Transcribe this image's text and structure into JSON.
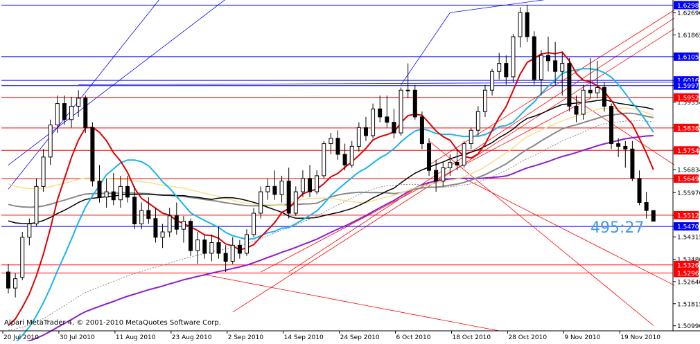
{
  "copyright": "Alpari MetaTrader 4, © 2001-2010 MetaQuotes Software Corp.",
  "countdown": "495:27",
  "colors": {
    "background": "#ffffff",
    "candle": "#000000",
    "hline_blue": "#0000ff",
    "hline_red": "#ff0000",
    "price_tag_blue": "#0000ff",
    "price_tag_red": "#ff0000",
    "countdown": "#3c9be8",
    "ma_red": "#dd0000",
    "ma_cyan": "#18b4ec",
    "ma_black": "#000000",
    "ma_yellow": "#f5e08c",
    "ma_gray": "#888888",
    "ma_purple": "#8a1ed0",
    "ma_dotted": "#888888"
  },
  "chart_data": {
    "type": "candlestick",
    "symbol_timeframe": "Daily",
    "y_axis_ticks": [
      "1.62690",
      "1.61865",
      "1.61054",
      "1.60165",
      "1.59970",
      "1.59354",
      "1.58390",
      "1.57600",
      "1.56834",
      "1.56494",
      "1.55970",
      "1.55126",
      "1.54706",
      "1.54315",
      "1.53480",
      "1.52640",
      "1.51815",
      "1.50990"
    ],
    "x_axis_labels": [
      "20 Jul 2010",
      "30 Jul 2010",
      "11 Aug 2010",
      "23 Aug 2010",
      "2 Sep 2010",
      "14 Sep 2010",
      "24 Sep 2010",
      "6 Oct 2010",
      "18 Oct 2010",
      "28 Oct 2010",
      "9 Nov 2010",
      "19 Nov 2010"
    ],
    "x_axis_label_bars": [
      0,
      8,
      16,
      24,
      32,
      40,
      48,
      56,
      64,
      72,
      80,
      88
    ],
    "ylim": [
      1.508,
      1.6312
    ],
    "bars": 95,
    "price_levels": [
      {
        "value": 1.6298,
        "label": "1.62980",
        "color": "blue"
      },
      {
        "value": 1.61054,
        "label": "1.61054",
        "color": "blue"
      },
      {
        "value": 1.60165,
        "label": "1.60165",
        "color": "blue"
      },
      {
        "value": 1.5997,
        "label": "1.59970",
        "color": "blue"
      },
      {
        "value": 1.59528,
        "label": "1.59528",
        "color": "red"
      },
      {
        "value": 1.58388,
        "label": "1.58388",
        "color": "red"
      },
      {
        "value": 1.57548,
        "label": "1.57548",
        "color": "red"
      },
      {
        "value": 1.56494,
        "label": "1.56494",
        "color": "red"
      },
      {
        "value": 1.55126,
        "label": "1.55126",
        "color": "red"
      },
      {
        "value": 1.54706,
        "label": "1.54706",
        "color": "blue"
      },
      {
        "value": 1.53264,
        "label": "1.53264",
        "color": "red"
      },
      {
        "value": 1.52964,
        "label": "1.52964",
        "color": "red"
      }
    ],
    "candles": [
      [
        1.53,
        1.533,
        1.522,
        1.524
      ],
      [
        1.524,
        1.5295,
        1.5205,
        1.5275
      ],
      [
        1.528,
        1.545,
        1.527,
        1.543
      ],
      [
        1.543,
        1.55,
        1.54,
        1.548
      ],
      [
        1.548,
        1.565,
        1.547,
        1.562
      ],
      [
        1.562,
        1.576,
        1.56,
        1.573
      ],
      [
        1.573,
        1.587,
        1.57,
        1.585
      ],
      [
        1.585,
        1.596,
        1.582,
        1.593
      ],
      [
        1.593,
        1.596,
        1.585,
        1.587
      ],
      [
        1.587,
        1.5955,
        1.584,
        1.592
      ],
      [
        1.592,
        1.598,
        1.588,
        1.595
      ],
      [
        1.595,
        1.596,
        1.582,
        1.584
      ],
      [
        1.584,
        1.586,
        1.562,
        1.564
      ],
      [
        1.564,
        1.57,
        1.556,
        1.558
      ],
      [
        1.558,
        1.565,
        1.554,
        1.56
      ],
      [
        1.56,
        1.567,
        1.555,
        1.557
      ],
      [
        1.557,
        1.566,
        1.554,
        1.562
      ],
      [
        1.562,
        1.566,
        1.556,
        1.558
      ],
      [
        1.558,
        1.562,
        1.546,
        1.548
      ],
      [
        1.548,
        1.556,
        1.546,
        1.553
      ],
      [
        1.553,
        1.558,
        1.548,
        1.55
      ],
      [
        1.55,
        1.554,
        1.541,
        1.543
      ],
      [
        1.543,
        1.548,
        1.539,
        1.545
      ],
      [
        1.545,
        1.554,
        1.543,
        1.551
      ],
      [
        1.551,
        1.556,
        1.544,
        1.546
      ],
      [
        1.546,
        1.551,
        1.541,
        1.549
      ],
      [
        1.549,
        1.55,
        1.536,
        1.538
      ],
      [
        1.538,
        1.545,
        1.533,
        1.542
      ],
      [
        1.542,
        1.544,
        1.535,
        1.537
      ],
      [
        1.537,
        1.544,
        1.534,
        1.541
      ],
      [
        1.541,
        1.547,
        1.535,
        1.537
      ],
      [
        1.537,
        1.54,
        1.53,
        1.534
      ],
      [
        1.534,
        1.543,
        1.533,
        1.54
      ],
      [
        1.54,
        1.542,
        1.535,
        1.537
      ],
      [
        1.537,
        1.546,
        1.536,
        1.544
      ],
      [
        1.544,
        1.554,
        1.543,
        1.552
      ],
      [
        1.552,
        1.562,
        1.55,
        1.56
      ],
      [
        1.56,
        1.565,
        1.557,
        1.562
      ],
      [
        1.562,
        1.568,
        1.557,
        1.559
      ],
      [
        1.559,
        1.566,
        1.556,
        1.564
      ],
      [
        1.564,
        1.569,
        1.55,
        1.552
      ],
      [
        1.552,
        1.562,
        1.551,
        1.56
      ],
      [
        1.56,
        1.568,
        1.558,
        1.565
      ],
      [
        1.565,
        1.57,
        1.558,
        1.56
      ],
      [
        1.56,
        1.568,
        1.559,
        1.566
      ],
      [
        1.566,
        1.579,
        1.565,
        1.578
      ],
      [
        1.578,
        1.582,
        1.574,
        1.58
      ],
      [
        1.58,
        1.583,
        1.572,
        1.574
      ],
      [
        1.574,
        1.578,
        1.568,
        1.57
      ],
      [
        1.57,
        1.579,
        1.569,
        1.577
      ],
      [
        1.577,
        1.586,
        1.575,
        1.584
      ],
      [
        1.584,
        1.588,
        1.579,
        1.581
      ],
      [
        1.581,
        1.593,
        1.58,
        1.591
      ],
      [
        1.591,
        1.596,
        1.586,
        1.588
      ],
      [
        1.588,
        1.596,
        1.584,
        1.586
      ],
      [
        1.586,
        1.591,
        1.58,
        1.582
      ],
      [
        1.582,
        1.599,
        1.581,
        1.598
      ],
      [
        1.598,
        1.608,
        1.595,
        1.598
      ],
      [
        1.598,
        1.6,
        1.587,
        1.588
      ],
      [
        1.588,
        1.59,
        1.576,
        1.578
      ],
      [
        1.578,
        1.58,
        1.566,
        1.568
      ],
      [
        1.568,
        1.572,
        1.56,
        1.564
      ],
      [
        1.564,
        1.571,
        1.562,
        1.569
      ],
      [
        1.569,
        1.574,
        1.566,
        1.571
      ],
      [
        1.571,
        1.576,
        1.568,
        1.57
      ],
      [
        1.57,
        1.579,
        1.569,
        1.578
      ],
      [
        1.578,
        1.584,
        1.576,
        1.583
      ],
      [
        1.583,
        1.592,
        1.581,
        1.59
      ],
      [
        1.59,
        1.6,
        1.588,
        1.598
      ],
      [
        1.598,
        1.606,
        1.596,
        1.605
      ],
      [
        1.605,
        1.612,
        1.602,
        1.608
      ],
      [
        1.608,
        1.611,
        1.6,
        1.603
      ],
      [
        1.603,
        1.619,
        1.601,
        1.618
      ],
      [
        1.618,
        1.629,
        1.614,
        1.627
      ],
      [
        1.627,
        1.6298,
        1.616,
        1.618
      ],
      [
        1.618,
        1.62,
        1.6,
        1.602
      ],
      [
        1.602,
        1.613,
        1.596,
        1.611
      ],
      [
        1.611,
        1.618,
        1.605,
        1.609
      ],
      [
        1.609,
        1.616,
        1.6,
        1.605
      ],
      [
        1.605,
        1.612,
        1.596,
        1.608
      ],
      [
        1.608,
        1.61,
        1.59,
        1.592
      ],
      [
        1.592,
        1.596,
        1.586,
        1.589
      ],
      [
        1.589,
        1.6,
        1.587,
        1.598
      ],
      [
        1.598,
        1.61,
        1.595,
        1.597
      ],
      [
        1.597,
        1.609,
        1.595,
        1.599
      ],
      [
        1.599,
        1.601,
        1.59,
        1.592
      ],
      [
        1.592,
        1.593,
        1.576,
        1.578
      ],
      [
        1.578,
        1.58,
        1.573,
        1.577
      ],
      [
        1.577,
        1.579,
        1.569,
        1.576
      ],
      [
        1.576,
        1.579,
        1.564,
        1.565
      ],
      [
        1.565,
        1.568,
        1.555,
        1.556
      ],
      [
        1.556,
        1.56,
        1.55,
        1.553
      ],
      [
        1.553,
        1.553,
        1.549,
        1.549
      ]
    ]
  }
}
